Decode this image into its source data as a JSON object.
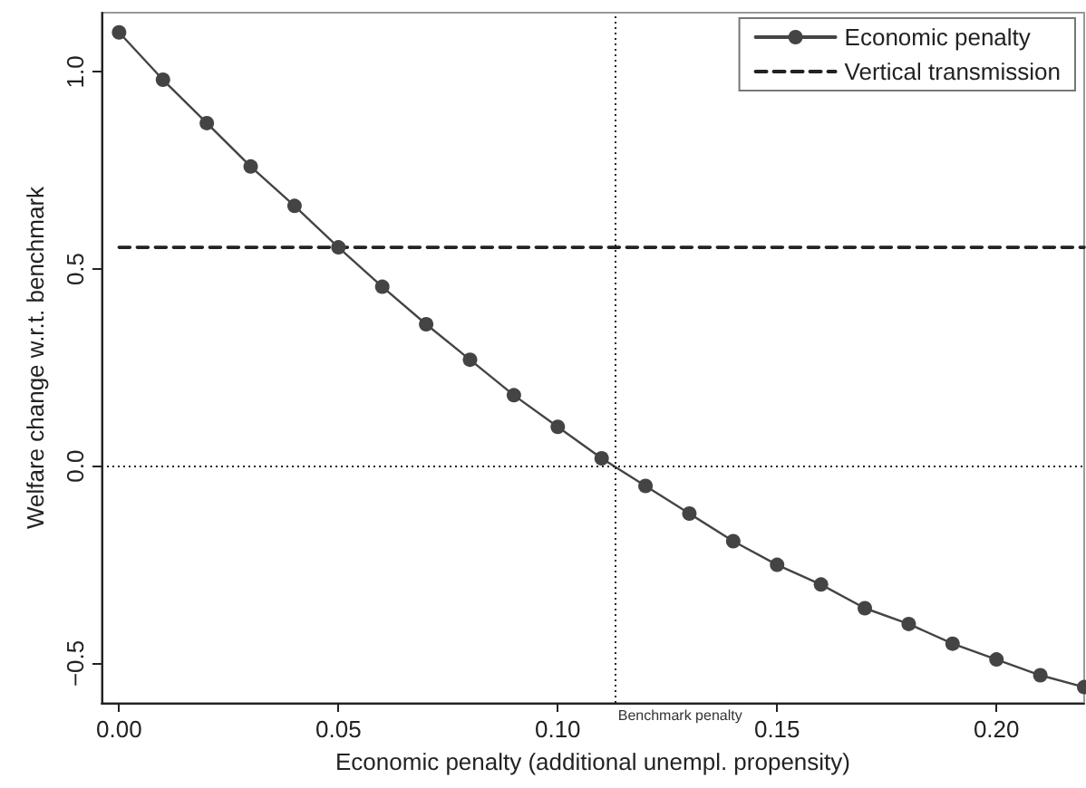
{
  "chart_data": {
    "type": "line",
    "xlabel": "Economic penalty (additional unempl. propensity)",
    "ylabel": "Welfare change w.r.t. benchmark",
    "x": [
      0,
      0.01,
      0.02,
      0.03,
      0.04,
      0.05,
      0.06,
      0.07,
      0.08,
      0.09,
      0.1,
      0.11,
      0.12,
      0.13,
      0.14,
      0.15,
      0.16,
      0.17,
      0.18,
      0.19,
      0.2,
      0.21,
      0.22
    ],
    "series": [
      {
        "name": "Economic penalty",
        "color": "#444444",
        "marker": "circle",
        "line_style": "solid",
        "values": [
          1.1,
          0.98,
          0.87,
          0.76,
          0.66,
          0.555,
          0.455,
          0.36,
          0.27,
          0.18,
          0.1,
          0.02,
          -0.05,
          -0.12,
          -0.19,
          -0.25,
          -0.3,
          -0.36,
          -0.4,
          -0.45,
          -0.49,
          -0.53,
          -0.56
        ]
      },
      {
        "name": "Vertical transmission",
        "color": "#222222",
        "marker": "none",
        "line_style": "dashed",
        "x": [
          0,
          0.22
        ],
        "values": [
          0.555,
          0.555
        ]
      }
    ],
    "ref_lines": [
      {
        "axis": "x",
        "value": 0.113,
        "label": "Benchmark penalty",
        "line_style": "dotted",
        "color": "#222222"
      },
      {
        "axis": "y",
        "value": 0,
        "label": null,
        "line_style": "dotted",
        "color": "#222222"
      }
    ],
    "xlim": [
      -0.004,
      0.22
    ],
    "ylim": [
      -0.6,
      1.15
    ],
    "xticks": [
      {
        "value": 0,
        "label": "0.00"
      },
      {
        "value": 0.05,
        "label": "0.05"
      },
      {
        "value": 0.1,
        "label": "0.10"
      },
      {
        "value": 0.15,
        "label": "0.15"
      },
      {
        "value": 0.2,
        "label": "0.20"
      }
    ],
    "yticks": [
      {
        "value": -0.5,
        "label": "−0.5"
      },
      {
        "value": 0,
        "label": "0.0"
      },
      {
        "value": 0.5,
        "label": "0.5"
      },
      {
        "value": 1,
        "label": "1.0"
      }
    ],
    "grid": false,
    "legend": "top right"
  }
}
